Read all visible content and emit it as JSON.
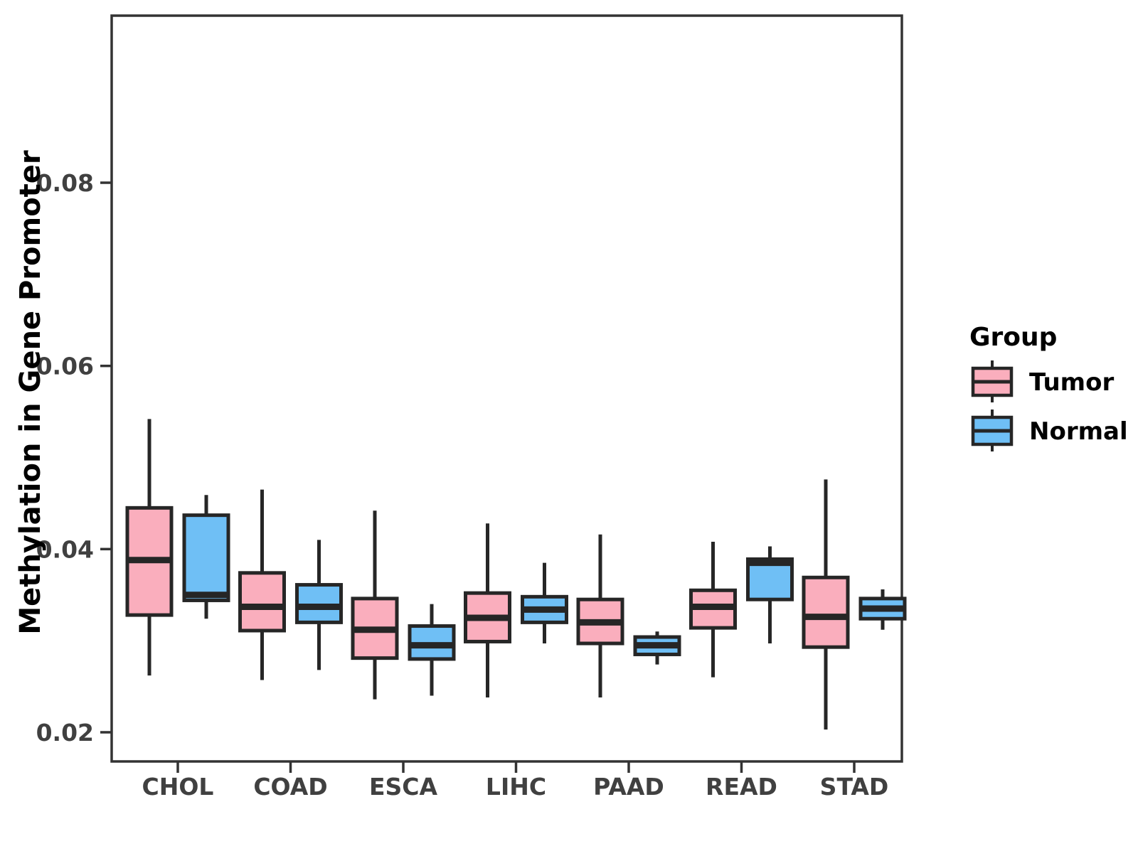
{
  "figure": {
    "background": "#FFFFFF"
  },
  "chart_data": {
    "type": "grouped_boxplot",
    "title": "",
    "xlabel": "",
    "ylabel": "Methylation in Gene Promoter",
    "categories": [
      "CHOL",
      "COAD",
      "ESCA",
      "LIHC",
      "PAAD",
      "READ",
      "STAD"
    ],
    "y_axis": {
      "ticks": [
        {
          "label": "0.08",
          "value": 0.08
        },
        {
          "label": "0.06",
          "value": 0.06
        },
        {
          "label": "0.04",
          "value": 0.04
        },
        {
          "label": "0.02",
          "value": 0.02
        }
      ],
      "range": [
        0.0168,
        0.0982
      ],
      "grid": false
    },
    "legend": {
      "title": "Group",
      "position": "right",
      "entries": [
        {
          "label": "Tumor",
          "color": "#FAAEBD"
        },
        {
          "label": "Normal",
          "color": "#6FBFF5"
        }
      ]
    },
    "style": {
      "box_border_color": "#262626",
      "panel_border_color": "#333333",
      "tick_color": "#333333",
      "tick_label_color": "#404040"
    },
    "series": [
      {
        "name": "Tumor",
        "color": "#FAAEBD",
        "boxes": [
          {
            "category": "CHOL",
            "low": 0.0262,
            "q1": 0.0328,
            "median": 0.0388,
            "q3": 0.0445,
            "high": 0.0542
          },
          {
            "category": "COAD",
            "low": 0.0257,
            "q1": 0.0311,
            "median": 0.0337,
            "q3": 0.0374,
            "high": 0.0465
          },
          {
            "category": "ESCA",
            "low": 0.0236,
            "q1": 0.0281,
            "median": 0.0312,
            "q3": 0.0346,
            "high": 0.0442
          },
          {
            "category": "LIHC",
            "low": 0.0238,
            "q1": 0.0299,
            "median": 0.0325,
            "q3": 0.0352,
            "high": 0.0428
          },
          {
            "category": "PAAD",
            "low": 0.0238,
            "q1": 0.0297,
            "median": 0.032,
            "q3": 0.0345,
            "high": 0.0416
          },
          {
            "category": "READ",
            "low": 0.026,
            "q1": 0.0314,
            "median": 0.0337,
            "q3": 0.0355,
            "high": 0.0408
          },
          {
            "category": "STAD",
            "low": 0.0203,
            "q1": 0.0293,
            "median": 0.0326,
            "q3": 0.0369,
            "high": 0.0476
          }
        ]
      },
      {
        "name": "Normal",
        "color": "#6FBFF5",
        "boxes": [
          {
            "category": "CHOL",
            "low": 0.0324,
            "q1": 0.0344,
            "median": 0.035,
            "q3": 0.0437,
            "high": 0.0459
          },
          {
            "category": "COAD",
            "low": 0.0268,
            "q1": 0.032,
            "median": 0.0337,
            "q3": 0.0361,
            "high": 0.041
          },
          {
            "category": "ESCA",
            "low": 0.024,
            "q1": 0.028,
            "median": 0.0295,
            "q3": 0.0316,
            "high": 0.034
          },
          {
            "category": "LIHC",
            "low": 0.0297,
            "q1": 0.032,
            "median": 0.0334,
            "q3": 0.0348,
            "high": 0.0385
          },
          {
            "category": "PAAD",
            "low": 0.0274,
            "q1": 0.0285,
            "median": 0.0295,
            "q3": 0.0304,
            "high": 0.031
          },
          {
            "category": "READ",
            "low": 0.0297,
            "q1": 0.0345,
            "median": 0.0385,
            "q3": 0.0389,
            "high": 0.0403
          },
          {
            "category": "STAD",
            "low": 0.0312,
            "q1": 0.0324,
            "median": 0.0335,
            "q3": 0.0346,
            "high": 0.0356
          }
        ]
      }
    ]
  }
}
